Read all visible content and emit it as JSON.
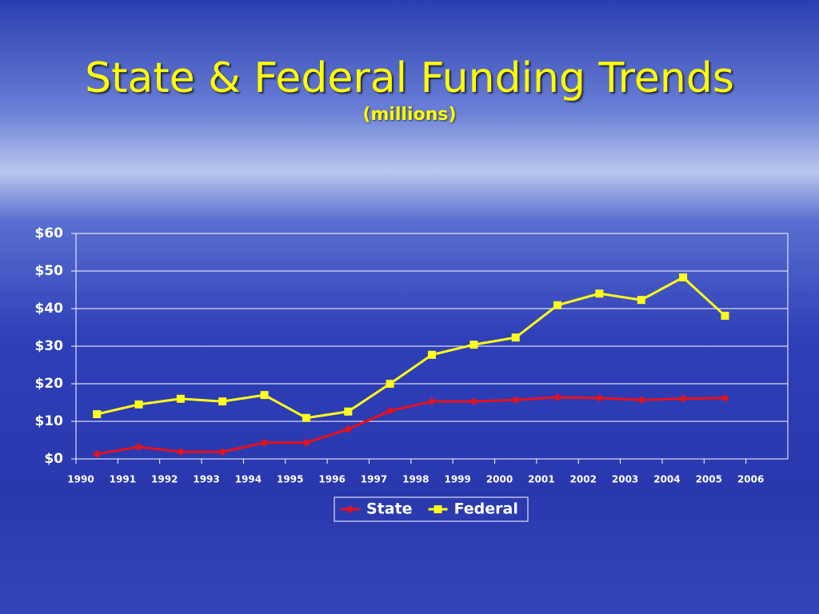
{
  "chart_data": {
    "type": "line",
    "title": "State & Federal Funding Trends",
    "subtitle": "(millions)",
    "x": [
      1990.5,
      1991.5,
      1992.5,
      1993.5,
      1994.5,
      1995.5,
      1996.5,
      1997.5,
      1998.5,
      1999.5,
      2000.5,
      2001.5,
      2002.5,
      2003.5,
      2004.5,
      2005.5
    ],
    "series": [
      {
        "name": "State",
        "color": "#e8101a",
        "marker": "diamond",
        "values": [
          1.3,
          3.2,
          1.9,
          1.9,
          4.3,
          4.3,
          7.9,
          12.8,
          15.3,
          15.3,
          15.7,
          16.4,
          16.2,
          15.7,
          16.0,
          16.2
        ]
      },
      {
        "name": "Federal",
        "color": "#ffff1a",
        "marker": "square",
        "values": [
          11.9,
          14.5,
          16.0,
          15.3,
          17.0,
          10.9,
          12.6,
          20.0,
          27.7,
          30.4,
          32.3,
          40.9,
          44.0,
          42.3,
          48.3,
          38.1
        ]
      }
    ],
    "xlim": [
      1990,
      2007
    ],
    "xticks": [
      1990,
      1991,
      1992,
      1993,
      1994,
      1995,
      1996,
      1997,
      1998,
      1999,
      2000,
      2001,
      2002,
      2003,
      2004,
      2005,
      2006
    ],
    "ylim": [
      0,
      60
    ],
    "yticks": [
      {
        "value": 0,
        "label": "$0"
      },
      {
        "value": 10,
        "label": "$10"
      },
      {
        "value": 20,
        "label": "$20"
      },
      {
        "value": 30,
        "label": "$30"
      },
      {
        "value": 40,
        "label": "$40"
      },
      {
        "value": 50,
        "label": "$50"
      },
      {
        "value": 60,
        "label": "$60"
      }
    ],
    "grid": true,
    "legend": "bottom"
  }
}
